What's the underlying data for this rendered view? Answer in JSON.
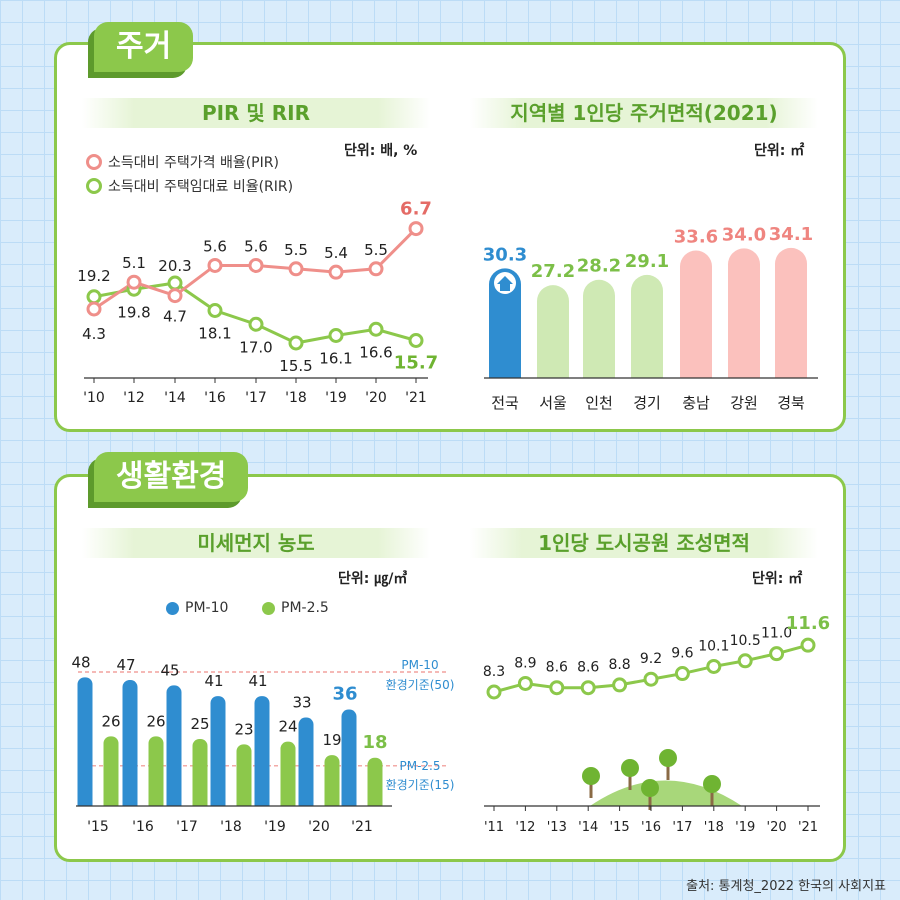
{
  "sections": {
    "housing": "주거",
    "living": "생활환경"
  },
  "source": "출처: 통계청_2022 한국의 사회지표",
  "colors": {
    "green": "#8cc84b",
    "pink": "#ef8f8a",
    "blue": "#2f8dd0",
    "light_green": "#cfe9b4",
    "light_pink": "#fbc1bd"
  },
  "chart_data": [
    {
      "id": "pir_rir",
      "type": "line",
      "title": "PIR 및 RIR",
      "unit": "단위: 배, %",
      "categories": [
        "'10",
        "'12",
        "'14",
        "'16",
        "'17",
        "'18",
        "'19",
        "'20",
        "'21"
      ],
      "series": [
        {
          "name": "소득대비 주택가격 배율(PIR)",
          "values": [
            4.3,
            5.1,
            4.7,
            5.6,
            5.6,
            5.5,
            5.4,
            5.5,
            6.7
          ]
        },
        {
          "name": "소득대비 주택임대료 비율(RIR)",
          "values": [
            19.2,
            19.8,
            20.3,
            18.1,
            17.0,
            15.5,
            16.1,
            16.6,
            15.7
          ]
        }
      ]
    },
    {
      "id": "area_per_person",
      "type": "bar",
      "title": "지역별 1인당 주거면적(2021)",
      "unit": "단위: ㎡",
      "categories": [
        "전국",
        "서울",
        "인천",
        "경기",
        "충남",
        "강원",
        "경북"
      ],
      "values": [
        30.3,
        27.2,
        28.2,
        29.1,
        33.6,
        34.0,
        34.1
      ]
    },
    {
      "id": "fine_dust",
      "type": "bar",
      "title": "미세먼지 농도",
      "unit": "단위: ㎍/㎥",
      "categories": [
        "'15",
        "'16",
        "'17",
        "'18",
        "'19",
        "'20",
        "'21"
      ],
      "series": [
        {
          "name": "PM-10",
          "values": [
            48,
            47,
            45,
            41,
            41,
            33,
            36
          ]
        },
        {
          "name": "PM-2.5",
          "values": [
            26,
            26,
            25,
            23,
            24,
            19,
            18
          ]
        }
      ],
      "reference_lines": [
        {
          "label1": "PM-10",
          "label2": "환경기준(50)",
          "value": 50
        },
        {
          "label1": "PM-2.5",
          "label2": "환경기준(15)",
          "value": 15
        }
      ]
    },
    {
      "id": "park_area",
      "type": "line",
      "title": "1인당 도시공원 조성면적",
      "unit": "단위: ㎡",
      "categories": [
        "'11",
        "'12",
        "'13",
        "'14",
        "'15",
        "'16",
        "'17",
        "'18",
        "'19",
        "'20",
        "'21"
      ],
      "values": [
        8.3,
        8.9,
        8.6,
        8.6,
        8.8,
        9.2,
        9.6,
        10.1,
        10.5,
        11.0,
        11.6
      ]
    }
  ]
}
